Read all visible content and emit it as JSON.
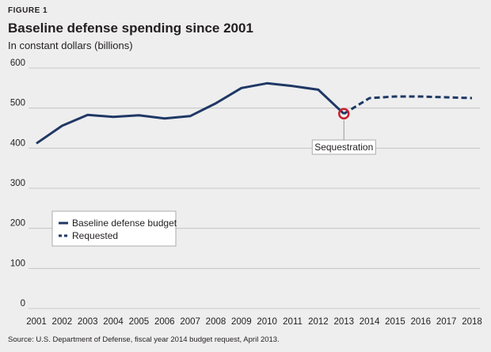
{
  "figure_label": "FIGURE 1",
  "source": "Source: U.S. Department of Defense, fiscal year 2014 budget request, April 2013.",
  "colors": {
    "background": "#eeeeef",
    "series": "#1f3864",
    "marker": "#c8202f",
    "grid": "#bdbdbd"
  },
  "chart_data": {
    "type": "line",
    "title": "Baseline defense spending since 2001",
    "subtitle": "In constant dollars (billions)",
    "xlabel": "",
    "ylabel": "",
    "x": [
      "2001",
      "2002",
      "2003",
      "2004",
      "2005",
      "2006",
      "2007",
      "2008",
      "2009",
      "2010",
      "2011",
      "2012",
      "2013",
      "2014",
      "2015",
      "2016",
      "2017",
      "2018"
    ],
    "ylim": [
      0,
      600
    ],
    "yticks": [
      "0",
      "100",
      "200",
      "300",
      "400",
      "500",
      "600"
    ],
    "grid": true,
    "legend_position": "left-center",
    "series": [
      {
        "name": "Baseline defense budget",
        "style": "solid",
        "x": [
          "2001",
          "2002",
          "2003",
          "2004",
          "2005",
          "2006",
          "2007",
          "2008",
          "2009",
          "2010",
          "2011",
          "2012",
          "2013"
        ],
        "values": [
          412,
          456,
          483,
          478,
          482,
          474,
          480,
          512,
          550,
          562,
          555,
          546,
          486
        ]
      },
      {
        "name": "Requested",
        "style": "dashed",
        "x": [
          "2013",
          "2014",
          "2015",
          "2016",
          "2017",
          "2018"
        ],
        "values": [
          486,
          525,
          529,
          529,
          527,
          525
        ]
      }
    ],
    "annotations": [
      {
        "text": "Sequestration",
        "x": "2013",
        "y": 486
      }
    ]
  }
}
